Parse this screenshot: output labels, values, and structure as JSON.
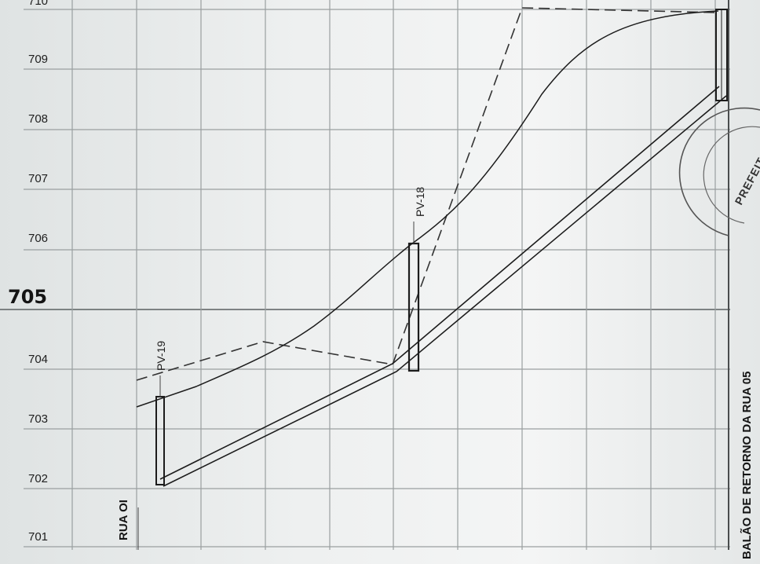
{
  "elevation_labels": [
    "710",
    "709",
    "708",
    "707",
    "706",
    "705",
    "704",
    "703",
    "702",
    "701"
  ],
  "manholes": [
    {
      "label": "PV-19"
    },
    {
      "label": "PV-18"
    }
  ],
  "streets": {
    "left": "RUA OI",
    "right": "BALÃO DE RETORNO DA RUA 05"
  },
  "stamp": {
    "text": "PREFEIT"
  },
  "colors": {
    "paper": "#eef0f0",
    "grid": "#9a9fa0",
    "ink": "#1c1c1c"
  }
}
